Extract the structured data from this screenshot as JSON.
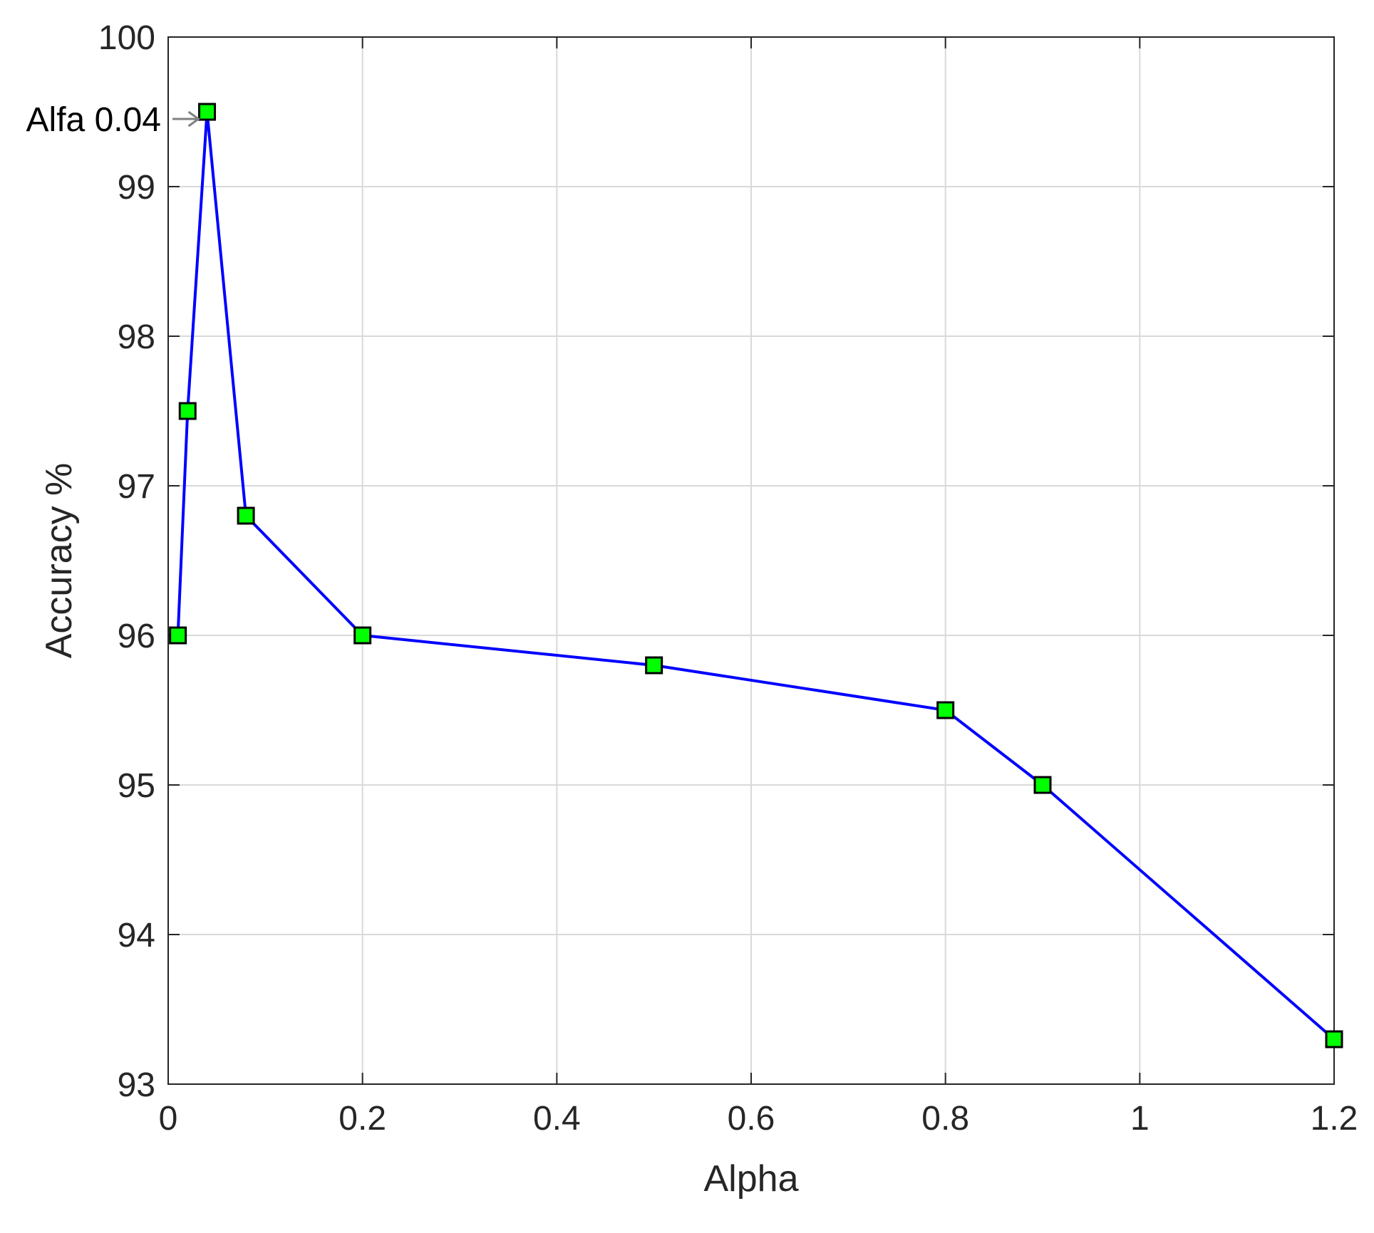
{
  "chart_data": {
    "type": "line",
    "title": "",
    "xlabel": "Alpha",
    "ylabel": "Accuracy %",
    "xlim": [
      0,
      1.2
    ],
    "ylim": [
      93,
      100
    ],
    "xticks": [
      0,
      0.2,
      0.4,
      0.6,
      0.8,
      1,
      1.2
    ],
    "xtick_labels": [
      "0",
      "0.2",
      "0.4",
      "0.6",
      "0.8",
      "1",
      "1.2"
    ],
    "yticks": [
      93,
      94,
      95,
      96,
      97,
      98,
      99,
      100
    ],
    "ytick_labels": [
      "93",
      "94",
      "95",
      "96",
      "97",
      "98",
      "99",
      "100"
    ],
    "grid": true,
    "series": [
      {
        "x": [
          0.01,
          0.02,
          0.04,
          0.08,
          0.2,
          0.5,
          0.8,
          0.9,
          1.2
        ],
        "y": [
          96.0,
          97.5,
          99.5,
          96.8,
          96.0,
          95.8,
          95.5,
          95.0,
          93.3
        ],
        "line_color": "#0000ff",
        "marker": "square",
        "marker_color": "#00ff00"
      }
    ],
    "annotations": [
      {
        "text": "Alfa 0.04",
        "x": 0.04,
        "y": 99.5
      }
    ]
  }
}
